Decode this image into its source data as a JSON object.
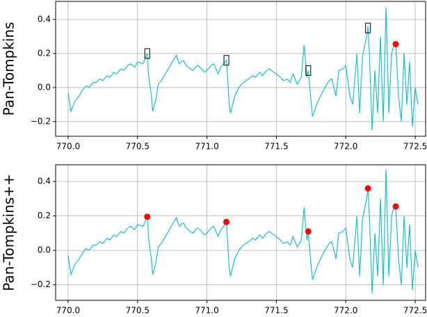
{
  "chart_data": [
    {
      "type": "line",
      "ylabel": "Pan-Tompkins",
      "xlim": [
        769.91,
        772.575
      ],
      "ylim": [
        -0.286,
        0.506
      ],
      "xticks": [
        {
          "value": 770,
          "label": "770.0"
        },
        {
          "value": 770.5,
          "label": "770.5"
        },
        {
          "value": 771,
          "label": "771.0"
        },
        {
          "value": 771.5,
          "label": "771.5"
        },
        {
          "value": 772,
          "label": "772.0"
        },
        {
          "value": 772.5,
          "label": "772.5"
        }
      ],
      "yticks": [
        {
          "value": -0.2,
          "label": "−0.2"
        },
        {
          "value": 0,
          "label": "0.0"
        },
        0.2,
        0.4
      ],
      "grid": true,
      "signal": {
        "color": "#17becf",
        "x": [
          770.0,
          770.02,
          770.05,
          770.08,
          770.1,
          770.13,
          770.15,
          770.18,
          770.2,
          770.23,
          770.25,
          770.28,
          770.3,
          770.33,
          770.35,
          770.38,
          770.4,
          770.43,
          770.45,
          770.48,
          770.5,
          770.54,
          770.57,
          770.58,
          770.6,
          770.61,
          770.63,
          770.65,
          770.68,
          770.7,
          770.73,
          770.75,
          770.78,
          770.8,
          770.83,
          770.85,
          770.88,
          770.9,
          770.93,
          770.95,
          770.98,
          771.0,
          771.03,
          771.05,
          771.08,
          771.1,
          771.14,
          771.15,
          771.16,
          771.17,
          771.2,
          771.23,
          771.25,
          771.28,
          771.3,
          771.33,
          771.35,
          771.38,
          771.4,
          771.43,
          771.45,
          771.48,
          771.5,
          771.53,
          771.55,
          771.58,
          771.6,
          771.62,
          771.65,
          771.68,
          771.7,
          771.72,
          771.73,
          771.75,
          771.76,
          771.8,
          771.83,
          771.85,
          771.88,
          771.9,
          771.93,
          771.95,
          771.98,
          772.0,
          772.03,
          772.05,
          772.08,
          772.1,
          772.12,
          772.15,
          772.16,
          772.17,
          772.19,
          772.21,
          772.23,
          772.25,
          772.27,
          772.29,
          772.31,
          772.33,
          772.35,
          772.36,
          772.38,
          772.4,
          772.42,
          772.44,
          772.46,
          772.48,
          772.5,
          772.52
        ],
        "values": [
          -0.03,
          -0.14,
          -0.08,
          -0.05,
          -0.02,
          0.01,
          0.0,
          0.03,
          0.03,
          0.05,
          0.04,
          0.07,
          0.06,
          0.09,
          0.08,
          0.11,
          0.1,
          0.13,
          0.14,
          0.12,
          0.15,
          0.14,
          0.2,
          0.07,
          -0.05,
          -0.14,
          -0.08,
          0.02,
          0.05,
          0.08,
          0.12,
          0.15,
          0.19,
          0.14,
          0.16,
          0.13,
          0.11,
          0.1,
          0.13,
          0.12,
          0.09,
          0.1,
          0.13,
          0.14,
          0.08,
          0.12,
          0.16,
          0.05,
          -0.1,
          -0.15,
          -0.05,
          0.0,
          0.02,
          0.04,
          0.05,
          0.07,
          0.06,
          0.09,
          0.07,
          0.1,
          0.11,
          0.09,
          0.08,
          0.06,
          0.04,
          0.05,
          0.03,
          0.08,
          0.02,
          0.06,
          0.25,
          0.06,
          0.1,
          -0.08,
          -0.17,
          -0.08,
          -0.03,
          0.0,
          0.04,
          0.05,
          -0.05,
          0.1,
          0.11,
          0.13,
          -0.05,
          -0.1,
          0.2,
          -0.15,
          0.18,
          0.3,
          0.36,
          0.2,
          -0.25,
          0.1,
          -0.15,
          0.3,
          -0.2,
          0.47,
          -0.15,
          0.2,
          0.26,
          0.25,
          -0.05,
          -0.2,
          0.2,
          -0.1,
          0.15,
          -0.23,
          0.0,
          -0.1
        ]
      },
      "peaks": {
        "color": "#ff0000",
        "x": [
          772.36
        ],
        "values": [
          0.255
        ]
      },
      "boxes": {
        "color": "#000000",
        "x": [
          770.57,
          771.14,
          771.73,
          772.16
        ],
        "values": [
          0.2,
          0.16,
          0.1,
          0.35
        ]
      }
    },
    {
      "type": "line",
      "ylabel": "Pan-Tompkins++",
      "xlim": [
        769.91,
        772.575
      ],
      "ylim": [
        -0.29,
        0.497
      ],
      "xticks": [
        {
          "value": 770,
          "label": "770.0"
        },
        {
          "value": 770.5,
          "label": "770.5"
        },
        {
          "value": 771,
          "label": "771.0"
        },
        {
          "value": 771.5,
          "label": "771.5"
        },
        {
          "value": 772,
          "label": "772.0"
        },
        {
          "value": 772.5,
          "label": "772.5"
        }
      ],
      "yticks": [
        {
          "value": -0.2,
          "label": "−0.2"
        },
        {
          "value": 0,
          "label": "0.0"
        },
        0.2,
        0.4
      ],
      "grid": true,
      "signal": {
        "color": "#17becf",
        "x": [
          770.0,
          770.02,
          770.05,
          770.08,
          770.1,
          770.13,
          770.15,
          770.18,
          770.2,
          770.23,
          770.25,
          770.28,
          770.3,
          770.33,
          770.35,
          770.38,
          770.4,
          770.43,
          770.45,
          770.48,
          770.5,
          770.54,
          770.57,
          770.58,
          770.6,
          770.61,
          770.63,
          770.65,
          770.68,
          770.7,
          770.73,
          770.75,
          770.78,
          770.8,
          770.83,
          770.85,
          770.88,
          770.9,
          770.93,
          770.95,
          770.98,
          771.0,
          771.03,
          771.05,
          771.08,
          771.1,
          771.14,
          771.15,
          771.16,
          771.17,
          771.2,
          771.23,
          771.25,
          771.28,
          771.3,
          771.33,
          771.35,
          771.38,
          771.4,
          771.43,
          771.45,
          771.48,
          771.5,
          771.53,
          771.55,
          771.58,
          771.6,
          771.62,
          771.65,
          771.68,
          771.7,
          771.72,
          771.73,
          771.75,
          771.76,
          771.8,
          771.83,
          771.85,
          771.88,
          771.9,
          771.93,
          771.95,
          771.98,
          772.0,
          772.03,
          772.05,
          772.08,
          772.1,
          772.12,
          772.15,
          772.16,
          772.17,
          772.19,
          772.21,
          772.23,
          772.25,
          772.27,
          772.29,
          772.31,
          772.33,
          772.35,
          772.36,
          772.38,
          772.4,
          772.42,
          772.44,
          772.46,
          772.48,
          772.5,
          772.52
        ],
        "values": [
          -0.03,
          -0.14,
          -0.08,
          -0.05,
          -0.02,
          0.01,
          0.0,
          0.03,
          0.03,
          0.05,
          0.04,
          0.07,
          0.06,
          0.09,
          0.08,
          0.11,
          0.1,
          0.13,
          0.14,
          0.12,
          0.15,
          0.14,
          0.2,
          0.07,
          -0.05,
          -0.14,
          -0.08,
          0.02,
          0.05,
          0.08,
          0.12,
          0.15,
          0.19,
          0.14,
          0.16,
          0.13,
          0.11,
          0.1,
          0.13,
          0.12,
          0.09,
          0.1,
          0.13,
          0.14,
          0.08,
          0.12,
          0.16,
          0.05,
          -0.1,
          -0.15,
          -0.05,
          0.0,
          0.02,
          0.04,
          0.05,
          0.07,
          0.06,
          0.09,
          0.07,
          0.1,
          0.11,
          0.09,
          0.08,
          0.06,
          0.04,
          0.05,
          0.03,
          0.08,
          0.02,
          0.06,
          0.25,
          0.06,
          0.1,
          -0.08,
          -0.17,
          -0.08,
          -0.03,
          0.0,
          0.04,
          0.05,
          -0.05,
          0.1,
          0.11,
          0.13,
          -0.05,
          -0.1,
          0.2,
          -0.15,
          0.18,
          0.3,
          0.36,
          0.2,
          -0.25,
          0.1,
          -0.15,
          0.3,
          -0.2,
          0.47,
          -0.15,
          0.2,
          0.26,
          0.25,
          -0.05,
          -0.2,
          0.2,
          -0.1,
          0.15,
          -0.23,
          0.0,
          -0.1
        ]
      },
      "peaks": {
        "color": "#ff0000",
        "x": [
          770.57,
          771.14,
          771.73,
          772.16,
          772.36
        ],
        "values": [
          0.195,
          0.165,
          0.11,
          0.36,
          0.255
        ]
      }
    }
  ]
}
